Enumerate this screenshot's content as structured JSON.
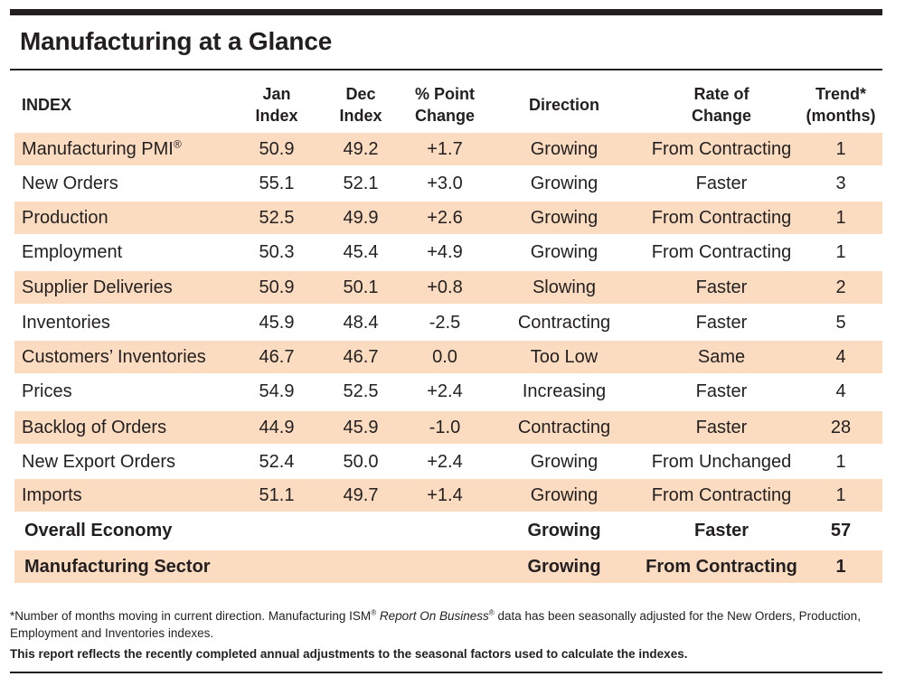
{
  "title": "Manufacturing at a Glance",
  "colors": {
    "row_shade": "#fbdcc0",
    "text": "#231f20",
    "rule": "#231f20"
  },
  "headers": {
    "index": "INDEX",
    "jan_l1": "Jan",
    "jan_l2": "Index",
    "dec_l1": "Dec",
    "dec_l2": "Index",
    "chg_l1": "% Point",
    "chg_l2": "Change",
    "direction": "Direction",
    "rate_l1": "Rate of",
    "rate_l2": "Change",
    "trend_l1": "Trend*",
    "trend_l2": "(months)"
  },
  "rows": [
    {
      "name": "Manufacturing PMI",
      "name_sup": "®",
      "jan": "50.9",
      "dec": "49.2",
      "change": "+1.7",
      "direction": "Growing",
      "rate": "From Contracting",
      "trend": "1"
    },
    {
      "name": "New Orders",
      "name_sup": "",
      "jan": "55.1",
      "dec": "52.1",
      "change": "+3.0",
      "direction": "Growing",
      "rate": "Faster",
      "trend": "3"
    },
    {
      "name": "Production",
      "name_sup": "",
      "jan": "52.5",
      "dec": "49.9",
      "change": "+2.6",
      "direction": "Growing",
      "rate": "From Contracting",
      "trend": "1"
    },
    {
      "name": "Employment",
      "name_sup": "",
      "jan": "50.3",
      "dec": "45.4",
      "change": "+4.9",
      "direction": "Growing",
      "rate": "From Contracting",
      "trend": "1"
    },
    {
      "name": "Supplier Deliveries",
      "name_sup": "",
      "jan": "50.9",
      "dec": "50.1",
      "change": "+0.8",
      "direction": "Slowing",
      "rate": "Faster",
      "trend": "2"
    },
    {
      "name": "Inventories",
      "name_sup": "",
      "jan": "45.9",
      "dec": "48.4",
      "change": "-2.5",
      "direction": "Contracting",
      "rate": "Faster",
      "trend": "5"
    },
    {
      "name": "Customers’ Inventories",
      "name_sup": "",
      "jan": "46.7",
      "dec": "46.7",
      "change": "0.0",
      "direction": "Too Low",
      "rate": "Same",
      "trend": "4"
    },
    {
      "name": "Prices",
      "name_sup": "",
      "jan": "54.9",
      "dec": "52.5",
      "change": "+2.4",
      "direction": "Increasing",
      "rate": "Faster",
      "trend": "4"
    },
    {
      "name": "Backlog of Orders",
      "name_sup": "",
      "jan": "44.9",
      "dec": "45.9",
      "change": "-1.0",
      "direction": "Contracting",
      "rate": "Faster",
      "trend": "28"
    },
    {
      "name": "New Export Orders",
      "name_sup": "",
      "jan": "52.4",
      "dec": "50.0",
      "change": "+2.4",
      "direction": "Growing",
      "rate": "From Unchanged",
      "trend": "1"
    },
    {
      "name": "Imports",
      "name_sup": "",
      "jan": "51.1",
      "dec": "49.7",
      "change": "+1.4",
      "direction": "Growing",
      "rate": "From Contracting",
      "trend": "1"
    }
  ],
  "summary": [
    {
      "name": "Overall Economy",
      "direction": "Growing",
      "rate": "Faster",
      "trend": "57"
    },
    {
      "name": "Manufacturing Sector",
      "direction": "Growing",
      "rate": "From Contracting",
      "trend": "1"
    }
  ],
  "footnote": {
    "part1": "*Number of months moving in current direction. Manufacturing ISM",
    "reg": "®",
    "italic": "Report On Business",
    "part2": " data has been seasonally adjusted for the New Orders, Production, Employment and Inventories indexes."
  },
  "note": "This report reflects the recently completed annual adjustments to the seasonal factors used to calculate the indexes."
}
